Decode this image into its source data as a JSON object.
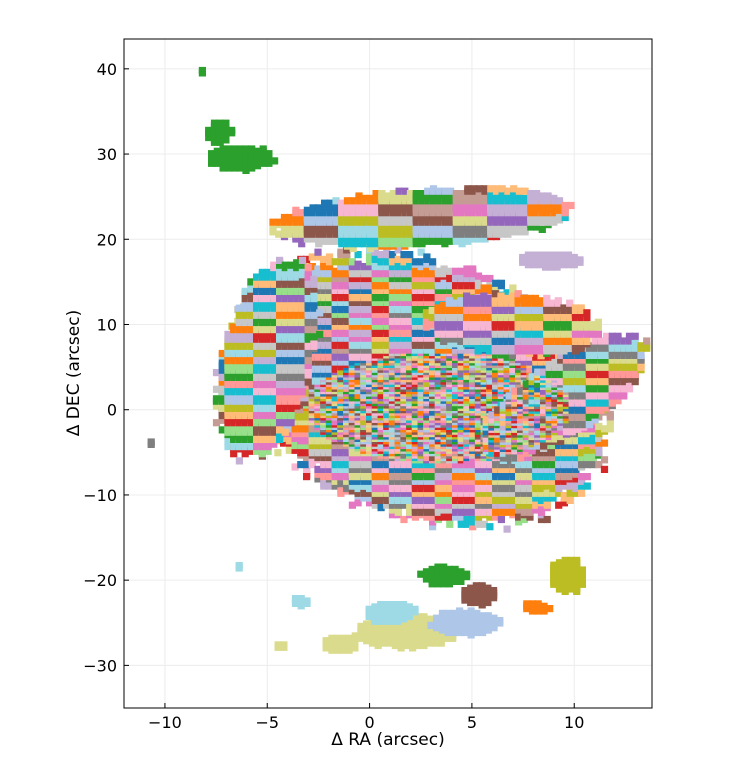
{
  "chart_data": {
    "type": "scatter",
    "title": "",
    "xlabel": "Δ RA (arcsec)",
    "ylabel": "Δ DEC (arcsec)",
    "xlim": [
      -12,
      13.8
    ],
    "ylim": [
      -35,
      43.5
    ],
    "grid": true,
    "xticks": [
      -10,
      -5,
      0,
      5,
      10
    ],
    "xtick_labels": [
      "−10",
      "−5",
      "0",
      "5",
      "10"
    ],
    "yticks": [
      -30,
      -20,
      -10,
      0,
      10,
      20,
      30,
      40
    ],
    "ytick_labels": [
      "−30",
      "−20",
      "−10",
      "0",
      "10",
      "20",
      "30",
      "40"
    ],
    "palette": [
      "#1f77b4",
      "#aec7e8",
      "#ff7f0e",
      "#ffbb78",
      "#2ca02c",
      "#98df8a",
      "#d62728",
      "#ff9896",
      "#9467bd",
      "#c5b0d5",
      "#8c564b",
      "#c49c94",
      "#e377c2",
      "#f7b6d2",
      "#7f7f7f",
      "#c7c7c7",
      "#bcbd22",
      "#dbdb8d",
      "#17becf",
      "#9edae5"
    ],
    "regions": [
      {
        "name": "main-disk",
        "shape": "ellipse",
        "cx": 3.4,
        "cy": 0.5,
        "rx": 5.6,
        "ry": 10.2,
        "rotation": 25
      },
      {
        "name": "disk-outer",
        "shape": "ellipse",
        "cx": 2.5,
        "cy": 2.5,
        "rx": 8.6,
        "ry": 16.5,
        "rotation": 12
      },
      {
        "name": "west-arm",
        "shape": "ellipse",
        "cx": -5,
        "cy": 6,
        "rx": 2.3,
        "ry": 12,
        "rotation": -5
      },
      {
        "name": "north-arc",
        "shape": "ellipse",
        "cx": 2.5,
        "cy": 22.5,
        "rx": 7.5,
        "ry": 3.3,
        "rotation": 10
      },
      {
        "name": "east-arm",
        "shape": "ellipse",
        "cx": 9.5,
        "cy": 1.5,
        "rx": 2.6,
        "ry": 8,
        "rotation": -25
      },
      {
        "name": "ne-arc",
        "shape": "ellipse",
        "cx": 7,
        "cy": 10,
        "rx": 4.5,
        "ry": 3.5,
        "rotation": -20
      },
      {
        "name": "nw-blob-main",
        "shape": "ellipse",
        "cx": -6.3,
        "cy": 29.5,
        "rx": 1.7,
        "ry": 1.4,
        "color": "#2ca02c"
      },
      {
        "name": "nw-blob-small",
        "shape": "ellipse",
        "cx": -7.3,
        "cy": 32.5,
        "rx": 0.6,
        "ry": 1.4,
        "color": "#2ca02c"
      },
      {
        "name": "nw-point",
        "shape": "ellipse",
        "cx": -8.1,
        "cy": 39.6,
        "rx": 0.15,
        "ry": 0.35,
        "color": "#2ca02c"
      },
      {
        "name": "ne-tail",
        "shape": "ellipse",
        "cx": 8.8,
        "cy": 17.5,
        "rx": 1.6,
        "ry": 0.9,
        "color": "#c5b0d5"
      },
      {
        "name": "south-blob-1",
        "shape": "ellipse",
        "cx": 1.8,
        "cy": -26,
        "rx": 2.5,
        "ry": 2,
        "color": "#dbdb8d"
      },
      {
        "name": "south-blob-2",
        "shape": "ellipse",
        "cx": 1.0,
        "cy": -23.8,
        "rx": 1.3,
        "ry": 1.2,
        "color": "#9edae5"
      },
      {
        "name": "south-blob-3",
        "shape": "ellipse",
        "cx": 4.7,
        "cy": -25,
        "rx": 1.7,
        "ry": 1.5,
        "color": "#aec7e8"
      },
      {
        "name": "south-blob-4",
        "shape": "ellipse",
        "cx": 3.7,
        "cy": -19.5,
        "rx": 1.2,
        "ry": 1.1,
        "color": "#2ca02c"
      },
      {
        "name": "south-blob-5",
        "shape": "ellipse",
        "cx": 5.3,
        "cy": -21.7,
        "rx": 0.9,
        "ry": 1.2,
        "color": "#8c564b"
      },
      {
        "name": "se-blob-1",
        "shape": "ellipse",
        "cx": 9.7,
        "cy": -19.5,
        "rx": 0.9,
        "ry": 2.1,
        "color": "#bcbd22"
      },
      {
        "name": "se-blob-2",
        "shape": "ellipse",
        "cx": 8.1,
        "cy": -23.2,
        "rx": 0.7,
        "ry": 0.6,
        "color": "#ff7f0e"
      },
      {
        "name": "sw-blob-1",
        "shape": "ellipse",
        "cx": -1.4,
        "cy": -27.5,
        "rx": 1,
        "ry": 0.9,
        "color": "#dbdb8d"
      },
      {
        "name": "sw-blob-2",
        "shape": "ellipse",
        "cx": -3.4,
        "cy": -22.5,
        "rx": 0.45,
        "ry": 0.5,
        "color": "#9edae5"
      },
      {
        "name": "sw-blob-3",
        "shape": "ellipse",
        "cx": -4.4,
        "cy": -27.8,
        "rx": 0.35,
        "ry": 0.3,
        "color": "#dbdb8d"
      },
      {
        "name": "isolated-west",
        "shape": "ellipse",
        "cx": -10.6,
        "cy": -4,
        "rx": 0.15,
        "ry": 0.35,
        "color": "#7f7f7f"
      },
      {
        "name": "isolated-south",
        "shape": "ellipse",
        "cx": -6.3,
        "cy": -18.5,
        "rx": 0.15,
        "ry": 0.35,
        "color": "#9edae5"
      }
    ]
  }
}
